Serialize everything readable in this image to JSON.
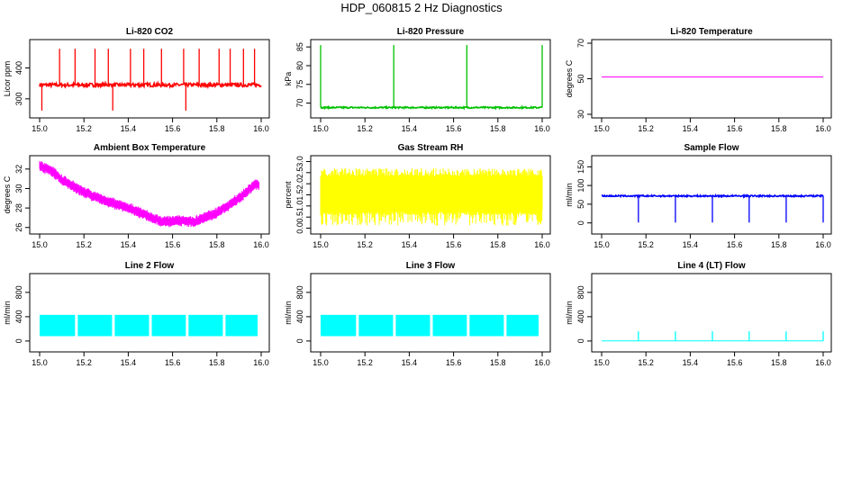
{
  "main_title": "HDP_060815  2 Hz Diagnostics",
  "chart_data": [
    {
      "id": "co2",
      "type": "line",
      "title": "Li-820 CO2",
      "ylabel": "Licor ppm",
      "color": "#ff0000",
      "xlim": [
        15.0,
        16.0
      ],
      "ylim": [
        250,
        480
      ],
      "yticks": [
        300,
        400
      ],
      "xticks": [
        "15.0",
        "15.2",
        "15.4",
        "15.6",
        "15.8",
        "16.0"
      ],
      "base": 345,
      "noise": 6,
      "spikes_up": [
        15.09,
        15.16,
        15.25,
        15.31,
        15.41,
        15.47,
        15.55,
        15.65,
        15.72,
        15.81,
        15.86,
        15.92,
        15.97
      ],
      "spike_up_to": 462,
      "spikes_down": [
        15.01,
        15.33,
        15.66
      ],
      "spike_down_to": 262,
      "pattern": "base_spikes"
    },
    {
      "id": "pressure",
      "type": "line",
      "title": "Li-820 Pressure",
      "ylabel": "kPa",
      "color": "#00c000",
      "xlim": [
        15.0,
        16.0
      ],
      "ylim": [
        67,
        86
      ],
      "yticks": [
        70,
        75,
        80,
        85
      ],
      "xticks": [
        "15.0",
        "15.2",
        "15.4",
        "15.6",
        "15.8",
        "16.0"
      ],
      "base": 68.8,
      "noise": 0.2,
      "spikes_up": [
        15.0,
        15.33,
        15.66,
        16.0
      ],
      "spike_up_to": 85.5,
      "spikes_down": [],
      "spike_down_to": 68,
      "pattern": "base_spikes"
    },
    {
      "id": "temp",
      "type": "line",
      "title": "Li-820 Temperature",
      "ylabel": "degrees C",
      "color": "#ff00ff",
      "xlim": [
        15.0,
        16.0
      ],
      "ylim": [
        30,
        70
      ],
      "yticks": [
        30,
        50,
        70
      ],
      "xticks": [
        "15.0",
        "15.2",
        "15.4",
        "15.6",
        "15.8",
        "16.0"
      ],
      "base": 51.0,
      "noise": 0,
      "spikes_up": [],
      "spike_up_to": 51,
      "spikes_down": [],
      "spike_down_to": 51,
      "pattern": "base_spikes"
    },
    {
      "id": "ambient",
      "type": "line",
      "title": "Ambient Box Temperature",
      "ylabel": "degrees C",
      "color": "#ff00ff",
      "xlim": [
        15.0,
        16.0
      ],
      "ylim": [
        25.7,
        33.0
      ],
      "yticks": [
        26,
        28,
        30,
        32
      ],
      "xticks": [
        "15.0",
        "15.2",
        "15.4",
        "15.6",
        "15.8",
        "16.0"
      ],
      "curve": [
        [
          15.0,
          32.3
        ],
        [
          15.05,
          31.9
        ],
        [
          15.1,
          30.9
        ],
        [
          15.2,
          29.6
        ],
        [
          15.3,
          28.7
        ],
        [
          15.4,
          28.0
        ],
        [
          15.5,
          27.1
        ],
        [
          15.55,
          26.6
        ],
        [
          15.65,
          26.7
        ],
        [
          15.7,
          26.6
        ],
        [
          15.8,
          27.5
        ],
        [
          15.9,
          29.0
        ],
        [
          15.97,
          30.4
        ],
        [
          15.99,
          30.4
        ]
      ],
      "band": 0.45,
      "pattern": "curve_band"
    },
    {
      "id": "rh",
      "type": "line",
      "title": "Gas Stream RH",
      "ylabel": "percent",
      "color": "#ffff00",
      "xlim": [
        15.0,
        16.0
      ],
      "ylim": [
        -0.1,
        3.1
      ],
      "yticks": [
        0.0,
        0.5,
        1.0,
        1.5,
        2.0,
        2.5,
        3.0
      ],
      "xticks": [
        "15.0",
        "15.2",
        "15.4",
        "15.6",
        "15.8",
        "16.0"
      ],
      "low": 0.1,
      "high": 2.7,
      "dense_low": 0.8,
      "dense_high": 2.3,
      "pattern": "noise_fill"
    },
    {
      "id": "sample",
      "type": "line",
      "title": "Sample Flow",
      "ylabel": "ml/min",
      "color": "#0000ff",
      "xlim": [
        15.0,
        16.0
      ],
      "ylim": [
        -20,
        170
      ],
      "yticks": [
        0,
        50,
        100,
        150
      ],
      "xticks": [
        "15.0",
        "15.2",
        "15.4",
        "15.6",
        "15.8",
        "16.0"
      ],
      "base": 72,
      "noise": 2,
      "spikes_up": [],
      "spike_up_to": 72,
      "spikes_down": [
        15.166,
        15.333,
        15.5,
        15.666,
        15.833,
        16.0
      ],
      "spike_down_to": 1,
      "pattern": "base_spikes"
    },
    {
      "id": "line2",
      "type": "line",
      "title": "Line 2 Flow",
      "ylabel": "ml/min",
      "color": "#00ffff",
      "xlim": [
        15.0,
        16.0
      ],
      "ylim": [
        -120,
        1050
      ],
      "yticks": [
        0,
        400,
        800
      ],
      "xticks": [
        "15.0",
        "15.2",
        "15.4",
        "15.6",
        "15.8",
        "16.0"
      ],
      "low": 80,
      "high": 430,
      "gaps": [
        15.166,
        15.333,
        15.5,
        15.666,
        15.833
      ],
      "pattern": "block_fill"
    },
    {
      "id": "line3",
      "type": "line",
      "title": "Line 3 Flow",
      "ylabel": "ml/min",
      "color": "#00ffff",
      "xlim": [
        15.0,
        16.0
      ],
      "ylim": [
        -120,
        1050
      ],
      "yticks": [
        0,
        400,
        800
      ],
      "xticks": [
        "15.0",
        "15.2",
        "15.4",
        "15.6",
        "15.8",
        "16.0"
      ],
      "low": 80,
      "high": 430,
      "gaps": [
        15.166,
        15.333,
        15.5,
        15.666,
        15.833
      ],
      "pattern": "block_fill"
    },
    {
      "id": "line4",
      "type": "line",
      "title": "Line 4 (LT) Flow",
      "ylabel": "ml/min",
      "color": "#00ffff",
      "xlim": [
        15.0,
        16.0
      ],
      "ylim": [
        -120,
        1050
      ],
      "yticks": [
        0,
        400,
        800
      ],
      "xticks": [
        "15.0",
        "15.2",
        "15.4",
        "15.6",
        "15.8",
        "16.0"
      ],
      "base": 2,
      "noise": 0,
      "spikes_up": [
        15.166,
        15.333,
        15.5,
        15.666,
        15.833,
        16.0
      ],
      "spike_up_to": 160,
      "spikes_down": [],
      "spike_down_to": 0,
      "pattern": "base_spikes"
    }
  ]
}
